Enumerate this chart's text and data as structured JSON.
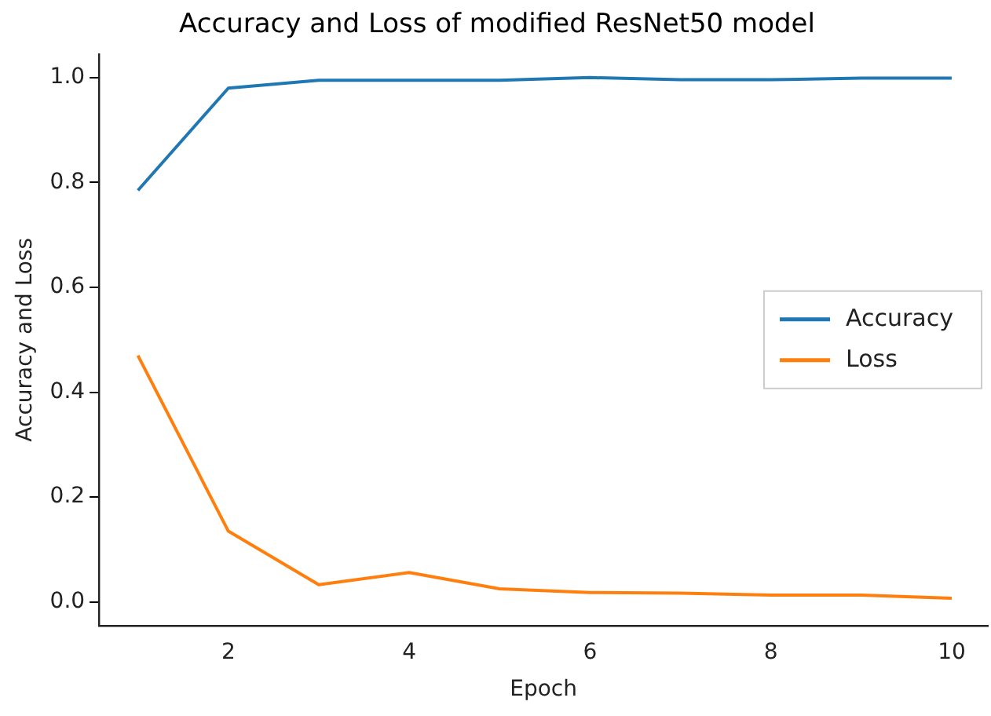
{
  "chart_data": {
    "type": "line",
    "title": "Accuracy and Loss of modified ResNet50 model",
    "xlabel": "Epoch",
    "ylabel": "Accuracy and Loss",
    "x": [
      1,
      2,
      3,
      4,
      5,
      6,
      7,
      8,
      9,
      10
    ],
    "series": [
      {
        "name": "Accuracy",
        "color": "#1f77b4",
        "values": [
          0.785,
          0.98,
          0.995,
          0.995,
          0.995,
          1.0,
          0.996,
          0.996,
          0.999,
          0.999
        ]
      },
      {
        "name": "Loss",
        "color": "#ff7f0e",
        "values": [
          0.47,
          0.135,
          0.033,
          0.056,
          0.025,
          0.018,
          0.017,
          0.013,
          0.013,
          0.007
        ]
      }
    ],
    "xlim": [
      0.57,
      10.4
    ],
    "xticks": [
      2,
      4,
      6,
      8,
      10
    ],
    "ylim": [
      -0.045,
      1.045
    ],
    "yticks": [
      {
        "value": 0,
        "label": "0.0"
      },
      {
        "value": 0.2,
        "label": "0.2"
      },
      {
        "value": 0.4,
        "label": "0.4"
      },
      {
        "value": 0.6,
        "label": "0.6"
      },
      {
        "value": 0.8,
        "label": "0.8"
      },
      {
        "value": 1,
        "label": "1.0"
      }
    ],
    "grid": false,
    "legend": "right",
    "marker": "none",
    "line_style": "solid"
  }
}
